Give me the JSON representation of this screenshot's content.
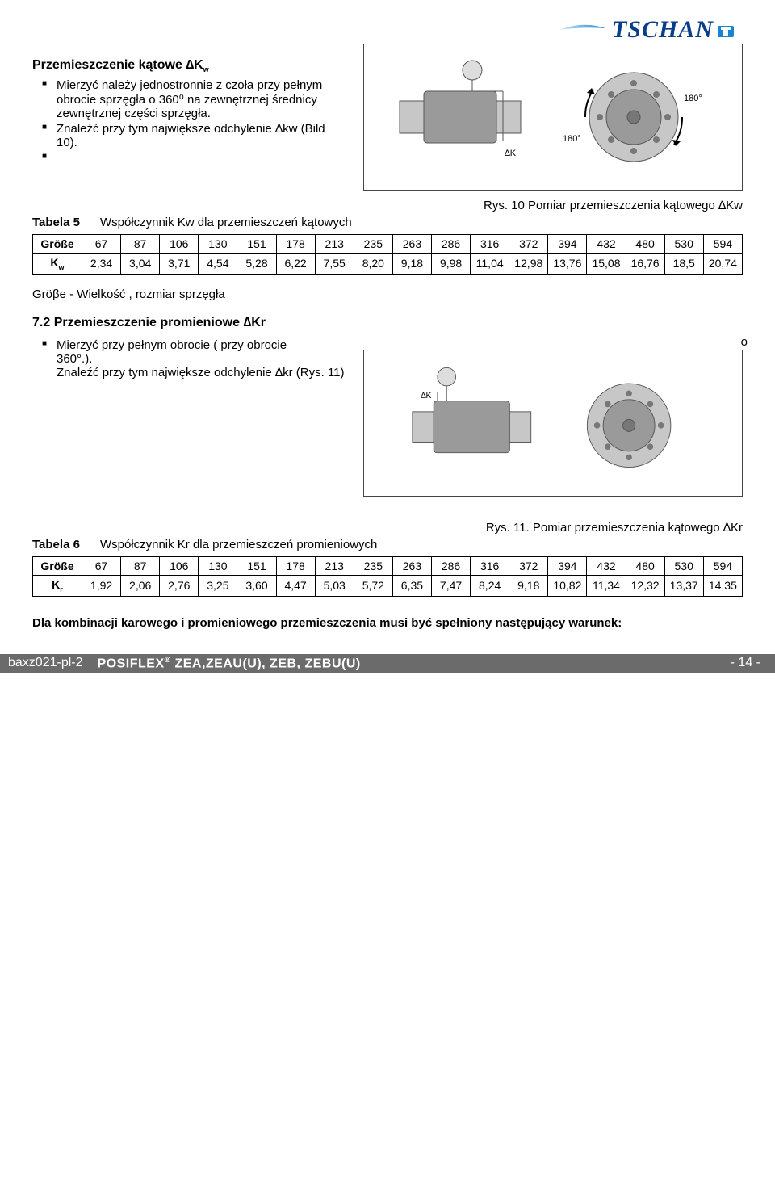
{
  "brand": {
    "name": "TSCHAN",
    "color": "#0a3e8a",
    "accent": "#1985d0"
  },
  "section_kw": {
    "heading_prefix": "Przemieszczenie kątowe ∆K",
    "heading_sub": "w",
    "bullet1": "Mierzyć należy jednostronnie z czoła przy pełnym obrocie sprzęgła o 360⁰ na zewnętrznej średnicy zewnętrznej części sprzęgła.",
    "bullet2": "Znaleźć przy tym największe odchylenie ∆kw (Bild 10).",
    "fig_caption": "Rys. 10 Pomiar przemieszczenia kątowego ∆Kw",
    "tabela_label": "Tabela 5",
    "tabela_text": "Współczynnik Kw dla  przemieszczeń kątowych"
  },
  "table5": {
    "header_label": "Größe",
    "row_label": "K",
    "row_sub": "w",
    "sizes": [
      "67",
      "87",
      "106",
      "130",
      "151",
      "178",
      "213",
      "235",
      "263",
      "286",
      "316",
      "372",
      "394",
      "432",
      "480",
      "530",
      "594"
    ],
    "values": [
      "2,34",
      "3,04",
      "3,71",
      "4,54",
      "5,28",
      "6,22",
      "7,55",
      "8,20",
      "9,18",
      "9,98",
      "11,04",
      "12,98",
      "13,76",
      "15,08",
      "16,76",
      "18,5",
      "20,74"
    ]
  },
  "grosse_note": "Gröβe - Wielkość , rozmiar sprzęgła",
  "section_kr": {
    "heading": "7.2 Przemieszczenie promieniowe ∆Kr",
    "bullet1a": "Mierzyć przy pełnym obrocie ( przy obrocie",
    "bullet1b": "360°.).",
    "bullet1_trailing": "o",
    "bullet2": "Znaleźć przy tym największe odchylenie ∆kr (Rys. 11)",
    "fig_caption": "Rys. 11. Pomiar przemieszczenia kątowego ∆Kr",
    "tabela_label": "Tabela 6",
    "tabela_text": "Współczynnik Kr dla  przemieszczeń promieniowych"
  },
  "table6": {
    "header_label": "Größe",
    "row_label": "K",
    "row_sub": "r",
    "sizes": [
      "67",
      "87",
      "106",
      "130",
      "151",
      "178",
      "213",
      "235",
      "263",
      "286",
      "316",
      "372",
      "394",
      "432",
      "480",
      "530",
      "594"
    ],
    "values": [
      "1,92",
      "2,06",
      "2,76",
      "3,25",
      "3,60",
      "4,47",
      "5,03",
      "5,72",
      "6,35",
      "7,47",
      "8,24",
      "9,18",
      "10,82",
      "11,34",
      "12,32",
      "13,37",
      "14,35"
    ]
  },
  "closing": "Dla kombinacji karowego i promieniowego przemieszczenia musi być spełniony następujący warunek:",
  "footer": {
    "doccode": "baxz021-pl-2",
    "product_prefix": "POSIFLEX",
    "product_rest": " ZEA,ZEAU(U), ZEB, ZEBU(U)",
    "pageno": "- 14 -"
  },
  "figures": {
    "angle_labels": [
      "180°",
      "180°"
    ],
    "delta_label_kw": "∆Kw",
    "delta_label_kr": "∆Kr"
  }
}
